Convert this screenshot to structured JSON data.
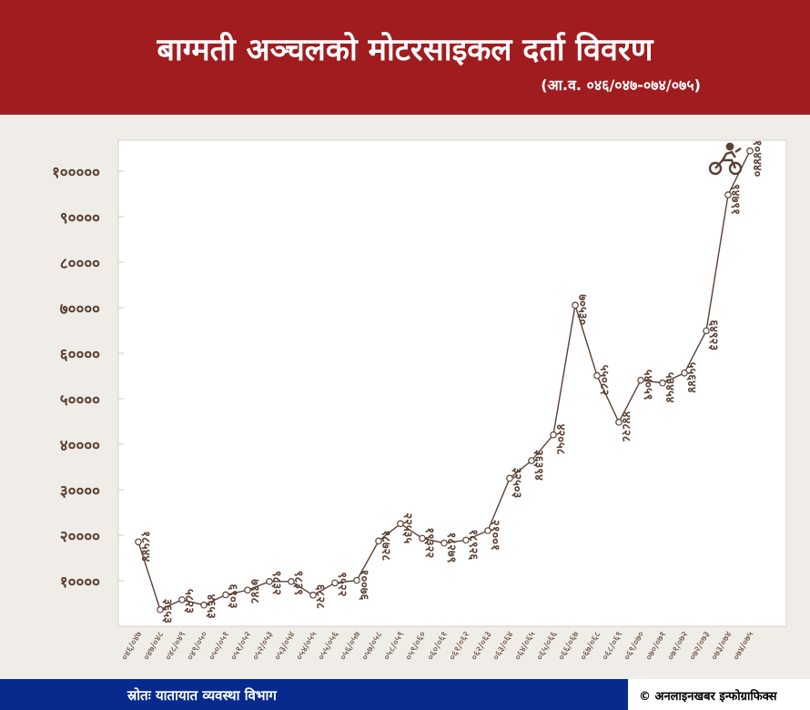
{
  "header": {
    "title": "बाग्मती अञ्चलको मोटरसाइकल दर्ता विवरण",
    "subtitle": "(आ.व. ०४६/०४७-०७४/०७५)"
  },
  "footer": {
    "source": "स्रोतः यातायात व्यवस्था विभाग",
    "credit": "© अनलाइनखबर इन्फोग्राफिक्स"
  },
  "chart_data": {
    "type": "line",
    "title": "बाग्मती अञ्चलको मोटरसाइकल दर्ता विवरण",
    "ylim": [
      0,
      110000
    ],
    "yticks": [
      {
        "value": 10000,
        "label": "१००००"
      },
      {
        "value": 20000,
        "label": "२००००"
      },
      {
        "value": 30000,
        "label": "३००००"
      },
      {
        "value": 40000,
        "label": "४००००"
      },
      {
        "value": 50000,
        "label": "५००००"
      },
      {
        "value": 60000,
        "label": "६००००"
      },
      {
        "value": 70000,
        "label": "७००००"
      },
      {
        "value": 80000,
        "label": "८००००"
      },
      {
        "value": 90000,
        "label": "९००००"
      },
      {
        "value": 100000,
        "label": "१०००००"
      }
    ],
    "categories": [
      "०४६/०४७",
      "०४७/०४८",
      "०४८/०४९",
      "०४९/०५०",
      "०५०/०५१",
      "०५१/०५२",
      "०५२/०५३",
      "०५३/०५४",
      "०५४/०५५",
      "०५५/०५६",
      "०५६/०५७",
      "०५७/०५८",
      "०५८/०५९",
      "०५९/०६०",
      "०६०/०६१",
      "०६१/०६२",
      "०६२/०६३",
      "०६३/०६४",
      "०६४/०६५",
      "०६५/०६६",
      "०६६/०६७",
      "०६७/०६८",
      "०६८/०६९",
      "०६९/०७०",
      "०७०/०७१",
      "०७१/०७२",
      "०७२/०७३",
      "०७३/०७४",
      "०७४/०७५"
    ],
    "values": [
      18544,
      3653,
      5823,
      4653,
      6903,
      7948,
      9832,
      9839,
      6828,
      9522,
      10076,
      18728,
      22535,
      19322,
      18279,
      18926,
      21001,
      32503,
      36394,
      42058,
      70530,
      55082,
      44828,
      54059,
      53454,
      55644,
      64923,
      94791,
      104440
    ],
    "data_labels": [
      "१८५४४",
      "३६५३",
      "५८२३",
      "४६५३",
      "६९०३",
      "७९४८",
      "९८३२",
      "९८३९",
      "६८२८",
      "९५२२",
      "१००७६",
      "१८७२८",
      "२२५३५",
      "१९३२२",
      "१८२७९",
      "१८९२६",
      "२१००१",
      "३२५०३",
      "३६३९४",
      "४२०५८",
      "७०५३०",
      "५५०८२",
      "४४८२८",
      "५४०५९",
      "५३४५४",
      "५५६४४",
      "६४९२३",
      "९४७९१",
      "१०४४४०"
    ],
    "grid": false,
    "colors": {
      "line": "#5b4033",
      "text": "#5b4033",
      "header": "#a01c1f",
      "footer": "#062a8e"
    },
    "icon": "motorcycle-rider-icon"
  }
}
